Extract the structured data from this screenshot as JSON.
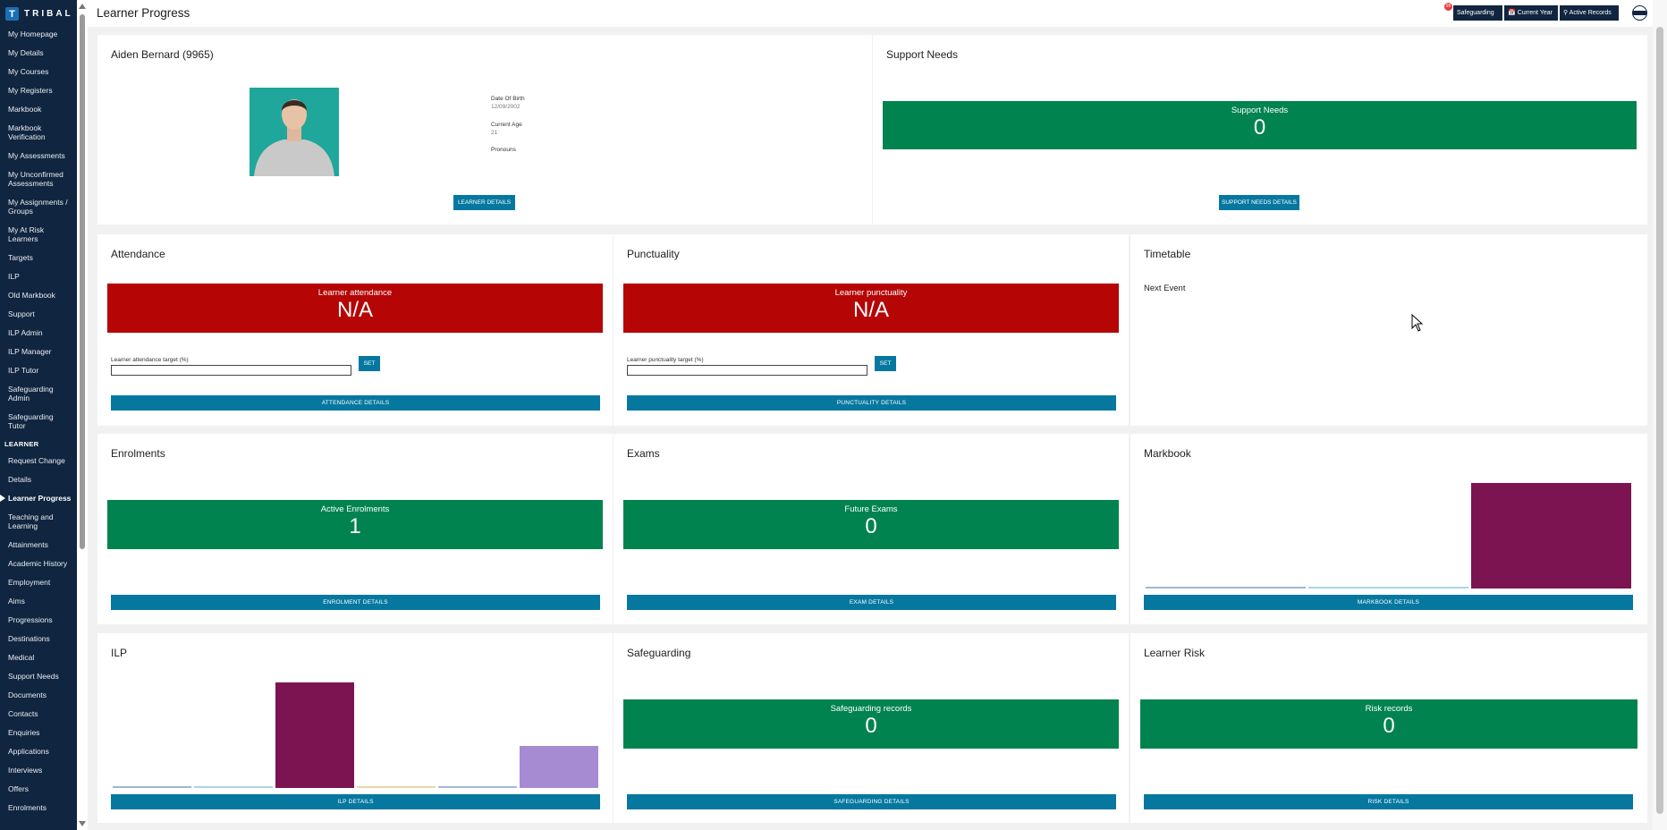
{
  "logo": {
    "mark": "T",
    "word": "TRIBAL"
  },
  "sidebar": {
    "items_top": [
      "My Homepage",
      "My Details",
      "My Courses",
      "My Registers",
      "Markbook",
      "Markbook Verification",
      "My Assessments",
      "My Unconfirmed Assessments",
      "My Assignments / Groups",
      "My At Risk Learners",
      "Targets",
      "ILP",
      "Old Markbook",
      "Support",
      "ILP Admin",
      "ILP Manager",
      "ILP Tutor",
      "Safeguarding Admin",
      "Safeguarding Tutor"
    ],
    "section": "LEARNER",
    "items_learner": [
      "Request Change",
      "Details",
      "Learner Progress",
      "Teaching and Learning",
      "Attainments",
      "Academic History",
      "Employment",
      "Aims",
      "Progressions",
      "Destinations",
      "Medical",
      "Support Needs",
      "Documents",
      "Contacts",
      "Enquiries",
      "Applications",
      "Interviews",
      "Offers",
      "Enrolments"
    ],
    "active": "Learner Progress"
  },
  "header": {
    "title": "Learner Progress",
    "safeguarding": "Safeguarding",
    "current_year": "📅 Current Year",
    "active_records": "⚲ Active Records",
    "badge": "99"
  },
  "learner": {
    "name": "Aiden Bernard (9965)",
    "dob_label": "Date Of Birth",
    "dob": "12/09/2002",
    "age_label": "Current Age",
    "age": "21",
    "pronouns_label": "Pronouns",
    "button": "LEARNER DETAILS"
  },
  "support": {
    "title": "Support Needs",
    "label": "Support Needs",
    "value": "0",
    "button": "SUPPORT NEEDS DETAILS"
  },
  "attendance": {
    "title": "Attendance",
    "label": "Learner attendance",
    "value": "N/A",
    "target_label": "Learner attendance target (%)",
    "set": "SET",
    "button": "ATTENDANCE DETAILS"
  },
  "punctuality": {
    "title": "Punctuality",
    "label": "Learner punctuality",
    "value": "N/A",
    "target_label": "Learner punctuality target (%)",
    "set": "SET",
    "button": "PUNCTUALITY DETAILS"
  },
  "timetable": {
    "title": "Timetable",
    "next_event": "Next Event"
  },
  "enrolments": {
    "title": "Enrolments",
    "label": "Active Enrolments",
    "value": "1",
    "button": "ENROLMENT DETAILS"
  },
  "exams": {
    "title": "Exams",
    "label": "Future Exams",
    "value": "0",
    "button": "EXAM DETAILS"
  },
  "markbook": {
    "title": "Markbook",
    "button": "MARKBOOK DETAILS"
  },
  "ilp": {
    "title": "ILP",
    "button": "ILP DETAILS"
  },
  "safeguarding": {
    "title": "Safeguarding",
    "label": "Safeguarding records",
    "value": "0",
    "button": "SAFEGUARDING DETAILS"
  },
  "risk": {
    "title": "Learner Risk",
    "label": "Risk records",
    "value": "0",
    "button": "RISK DETAILS"
  },
  "chart_data": [
    {
      "type": "bar",
      "series": [
        {
          "value": 0.02,
          "color": "#9fb6d9"
        },
        {
          "value": 0.02,
          "color": "#a9d5e6"
        },
        {
          "value": 1.0,
          "color": "#7b1450"
        }
      ]
    },
    {
      "type": "bar",
      "series": [
        {
          "value": 0.02,
          "color": "#9fb6d9"
        },
        {
          "value": 0.02,
          "color": "#a9d5e6"
        },
        {
          "value": 1.0,
          "color": "#7b1450"
        },
        {
          "value": 0.02,
          "color": "#e8d7a8"
        },
        {
          "value": 0.02,
          "color": "#a6b7dd"
        },
        {
          "value": 0.4,
          "color": "#a68bd2"
        }
      ]
    }
  ]
}
